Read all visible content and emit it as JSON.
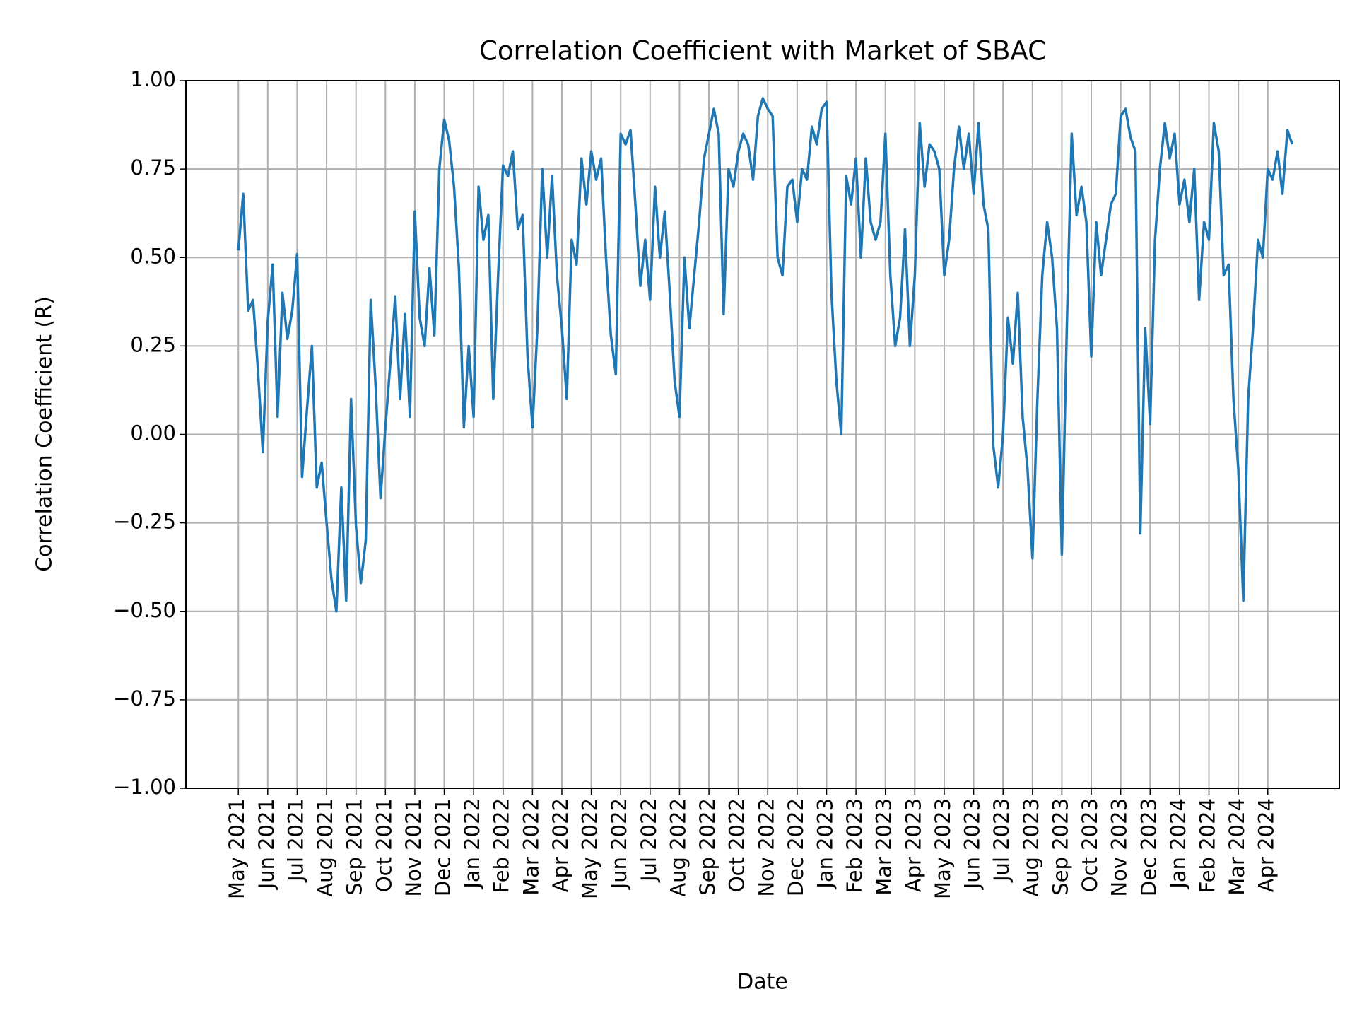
{
  "chart_data": {
    "type": "line",
    "title": "Correlation Coefficient with Market of SBAC",
    "xlabel": "Date",
    "ylabel": "Correlation Coefficient (R)",
    "grid": true,
    "xlim": [
      -10.7,
      224.6
    ],
    "ylim": [
      -1,
      1
    ],
    "yticks": [
      {
        "value": -1,
        "label": "−1.00"
      },
      {
        "value": -0.75,
        "label": "−0.75"
      },
      {
        "value": -0.5,
        "label": "−0.50"
      },
      {
        "value": -0.25,
        "label": "−0.25"
      },
      {
        "value": 0,
        "label": "0.00"
      },
      {
        "value": 0.25,
        "label": "0.25"
      },
      {
        "value": 0.5,
        "label": "0.50"
      },
      {
        "value": 0.75,
        "label": "0.75"
      },
      {
        "value": 1,
        "label": "1.00"
      }
    ],
    "xticks": [
      {
        "value": 0,
        "label": "May 2021"
      },
      {
        "value": 6,
        "label": "Jun 2021"
      },
      {
        "value": 12,
        "label": "Jul 2021"
      },
      {
        "value": 18,
        "label": "Aug 2021"
      },
      {
        "value": 24,
        "label": "Sep 2021"
      },
      {
        "value": 30,
        "label": "Oct 2021"
      },
      {
        "value": 36,
        "label": "Nov 2021"
      },
      {
        "value": 42,
        "label": "Dec 2021"
      },
      {
        "value": 48,
        "label": "Jan 2022"
      },
      {
        "value": 54,
        "label": "Feb 2022"
      },
      {
        "value": 60,
        "label": "Mar 2022"
      },
      {
        "value": 66,
        "label": "Apr 2022"
      },
      {
        "value": 72,
        "label": "May 2022"
      },
      {
        "value": 78,
        "label": "Jun 2022"
      },
      {
        "value": 84,
        "label": "Jul 2022"
      },
      {
        "value": 90,
        "label": "Aug 2022"
      },
      {
        "value": 96,
        "label": "Sep 2022"
      },
      {
        "value": 102,
        "label": "Oct 2022"
      },
      {
        "value": 108,
        "label": "Nov 2022"
      },
      {
        "value": 114,
        "label": "Dec 2022"
      },
      {
        "value": 120,
        "label": "Jan 2023"
      },
      {
        "value": 126,
        "label": "Feb 2023"
      },
      {
        "value": 132,
        "label": "Mar 2023"
      },
      {
        "value": 138,
        "label": "Apr 2023"
      },
      {
        "value": 144,
        "label": "May 2023"
      },
      {
        "value": 150,
        "label": "Jun 2023"
      },
      {
        "value": 156,
        "label": "Jul 2023"
      },
      {
        "value": 162,
        "label": "Aug 2023"
      },
      {
        "value": 168,
        "label": "Sep 2023"
      },
      {
        "value": 174,
        "label": "Oct 2023"
      },
      {
        "value": 180,
        "label": "Nov 2023"
      },
      {
        "value": 186,
        "label": "Dec 2023"
      },
      {
        "value": 192,
        "label": "Jan 2024"
      },
      {
        "value": 198,
        "label": "Feb 2024"
      },
      {
        "value": 204,
        "label": "Mar 2024"
      },
      {
        "value": 210,
        "label": "Apr 2024"
      }
    ],
    "color": "#1f77b4",
    "values": [
      0.52,
      0.68,
      0.35,
      0.38,
      0.18,
      -0.05,
      0.32,
      0.48,
      0.05,
      0.4,
      0.27,
      0.35,
      0.51,
      -0.12,
      0.07,
      0.25,
      -0.15,
      -0.08,
      -0.25,
      -0.41,
      -0.5,
      -0.15,
      -0.47,
      0.1,
      -0.26,
      -0.42,
      -0.3,
      0.38,
      0.14,
      -0.18,
      0.02,
      0.2,
      0.39,
      0.1,
      0.34,
      0.05,
      0.63,
      0.33,
      0.25,
      0.47,
      0.28,
      0.75,
      0.89,
      0.83,
      0.7,
      0.47,
      0.02,
      0.25,
      0.05,
      0.7,
      0.55,
      0.62,
      0.1,
      0.45,
      0.76,
      0.73,
      0.8,
      0.58,
      0.62,
      0.22,
      0.02,
      0.3,
      0.75,
      0.5,
      0.73,
      0.45,
      0.3,
      0.1,
      0.55,
      0.48,
      0.78,
      0.65,
      0.8,
      0.72,
      0.78,
      0.5,
      0.28,
      0.17,
      0.85,
      0.82,
      0.86,
      0.65,
      0.42,
      0.55,
      0.38,
      0.7,
      0.5,
      0.63,
      0.4,
      0.15,
      0.05,
      0.5,
      0.3,
      0.45,
      0.6,
      0.78,
      0.85,
      0.92,
      0.85,
      0.34,
      0.75,
      0.7,
      0.8,
      0.85,
      0.82,
      0.72,
      0.9,
      0.95,
      0.92,
      0.9,
      0.5,
      0.45,
      0.7,
      0.72,
      0.6,
      0.75,
      0.72,
      0.87,
      0.82,
      0.92,
      0.94,
      0.4,
      0.15,
      0.0,
      0.73,
      0.65,
      0.78,
      0.5,
      0.78,
      0.6,
      0.55,
      0.6,
      0.85,
      0.45,
      0.25,
      0.33,
      0.58,
      0.25,
      0.45,
      0.88,
      0.7,
      0.82,
      0.8,
      0.75,
      0.45,
      0.55,
      0.75,
      0.87,
      0.75,
      0.85,
      0.68,
      0.88,
      0.65,
      0.58,
      -0.03,
      -0.15,
      0.0,
      0.33,
      0.2,
      0.4,
      0.05,
      -0.1,
      -0.35,
      0.1,
      0.45,
      0.6,
      0.5,
      0.3,
      -0.34,
      0.3,
      0.85,
      0.62,
      0.7,
      0.6,
      0.22,
      0.6,
      0.45,
      0.55,
      0.65,
      0.68,
      0.9,
      0.92,
      0.84,
      0.8,
      -0.28,
      0.3,
      0.03,
      0.55,
      0.75,
      0.88,
      0.78,
      0.85,
      0.65,
      0.72,
      0.6,
      0.75,
      0.38,
      0.6,
      0.55,
      0.88,
      0.8,
      0.45,
      0.48,
      0.1,
      -0.1,
      -0.47,
      0.1,
      0.3,
      0.55,
      0.5,
      0.75,
      0.72,
      0.8,
      0.68,
      0.86,
      0.82
    ]
  }
}
